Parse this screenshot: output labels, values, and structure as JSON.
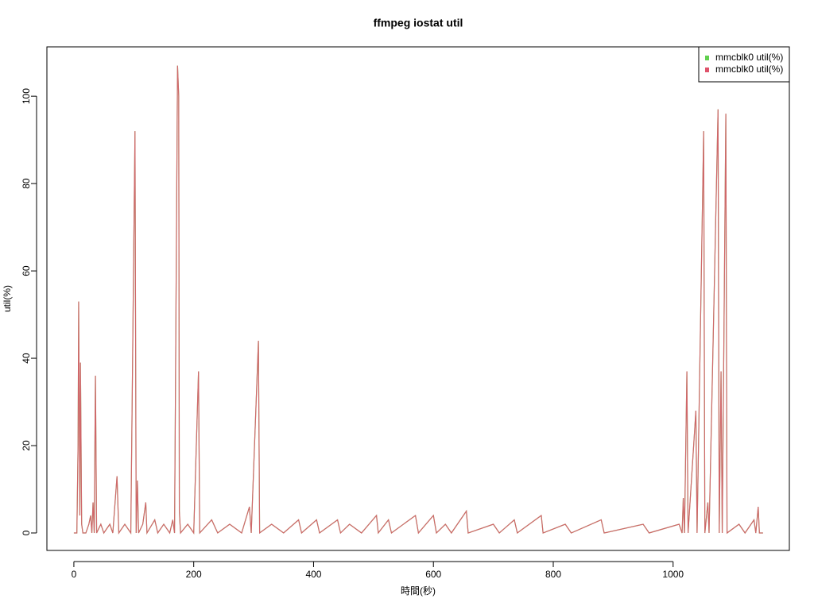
{
  "chart_data": {
    "type": "line",
    "title": "ffmpeg iostat util",
    "x_label": "時間(秒)",
    "y_label": "util(%)",
    "x": [
      0,
      5,
      7,
      8,
      10,
      11,
      13,
      15,
      20,
      25,
      28,
      30,
      32,
      34,
      36,
      38,
      45,
      50,
      60,
      65,
      72,
      75,
      85,
      95,
      102,
      104,
      106,
      108,
      115,
      120,
      122,
      135,
      140,
      150,
      160,
      165,
      168,
      173,
      175,
      176,
      178,
      190,
      200,
      208,
      210,
      230,
      240,
      260,
      280,
      293,
      296,
      308,
      310,
      330,
      350,
      375,
      380,
      405,
      410,
      440,
      445,
      460,
      480,
      505,
      508,
      525,
      530,
      570,
      575,
      600,
      605,
      620,
      630,
      655,
      658,
      700,
      710,
      735,
      740,
      780,
      783,
      820,
      830,
      880,
      885,
      950,
      960,
      1010,
      1015,
      1017,
      1019,
      1023,
      1025,
      1038,
      1040,
      1051,
      1053,
      1058,
      1060,
      1075,
      1077,
      1080,
      1082,
      1088,
      1090,
      1110,
      1120,
      1135,
      1138,
      1142,
      1144,
      1150
    ],
    "series": [
      {
        "name": "mmcblk0 util(%)",
        "color": "#61D04F",
        "values": [
          0,
          0,
          20,
          53,
          4,
          39,
          2,
          0,
          0,
          2,
          4,
          0,
          7,
          0,
          36,
          0,
          2,
          0,
          2,
          0,
          13,
          0,
          2,
          0,
          92,
          0,
          12,
          0,
          2,
          7,
          0,
          3,
          0,
          2,
          0,
          3,
          0,
          107,
          100,
          5,
          0,
          2,
          0,
          37,
          0,
          3,
          0,
          2,
          0,
          6,
          0,
          44,
          0,
          2,
          0,
          3,
          0,
          3,
          0,
          3,
          0,
          2,
          0,
          4,
          0,
          3,
          0,
          4,
          0,
          4,
          0,
          2,
          0,
          5,
          0,
          2,
          0,
          3,
          0,
          4,
          0,
          2,
          0,
          3,
          0,
          2,
          0,
          2,
          0,
          8,
          0,
          37,
          0,
          28,
          0,
          92,
          0,
          7,
          0,
          97,
          0,
          37,
          0,
          96,
          0,
          2,
          0,
          3,
          0,
          6,
          0,
          0
        ]
      },
      {
        "name": "mmcblk0 util(%)",
        "color": "#DF536B",
        "values": [
          0,
          0,
          20,
          53,
          4,
          39,
          2,
          0,
          0,
          2,
          4,
          0,
          7,
          0,
          36,
          0,
          2,
          0,
          2,
          0,
          13,
          0,
          2,
          0,
          92,
          0,
          12,
          0,
          2,
          7,
          0,
          3,
          0,
          2,
          0,
          3,
          0,
          107,
          100,
          5,
          0,
          2,
          0,
          37,
          0,
          3,
          0,
          2,
          0,
          6,
          0,
          44,
          0,
          2,
          0,
          3,
          0,
          3,
          0,
          3,
          0,
          2,
          0,
          4,
          0,
          3,
          0,
          4,
          0,
          4,
          0,
          2,
          0,
          5,
          0,
          2,
          0,
          3,
          0,
          4,
          0,
          2,
          0,
          3,
          0,
          2,
          0,
          2,
          0,
          8,
          0,
          37,
          0,
          28,
          0,
          92,
          0,
          7,
          0,
          97,
          0,
          37,
          0,
          96,
          0,
          2,
          0,
          3,
          0,
          6,
          0,
          0
        ]
      }
    ],
    "xlim": [
      -45,
      1194
    ],
    "ylim": [
      -4,
      111.3
    ],
    "xticks": [
      0,
      200,
      400,
      600,
      800,
      1000
    ],
    "yticks": [
      0,
      20,
      40,
      60,
      80,
      100
    ],
    "legend": "top-right"
  }
}
